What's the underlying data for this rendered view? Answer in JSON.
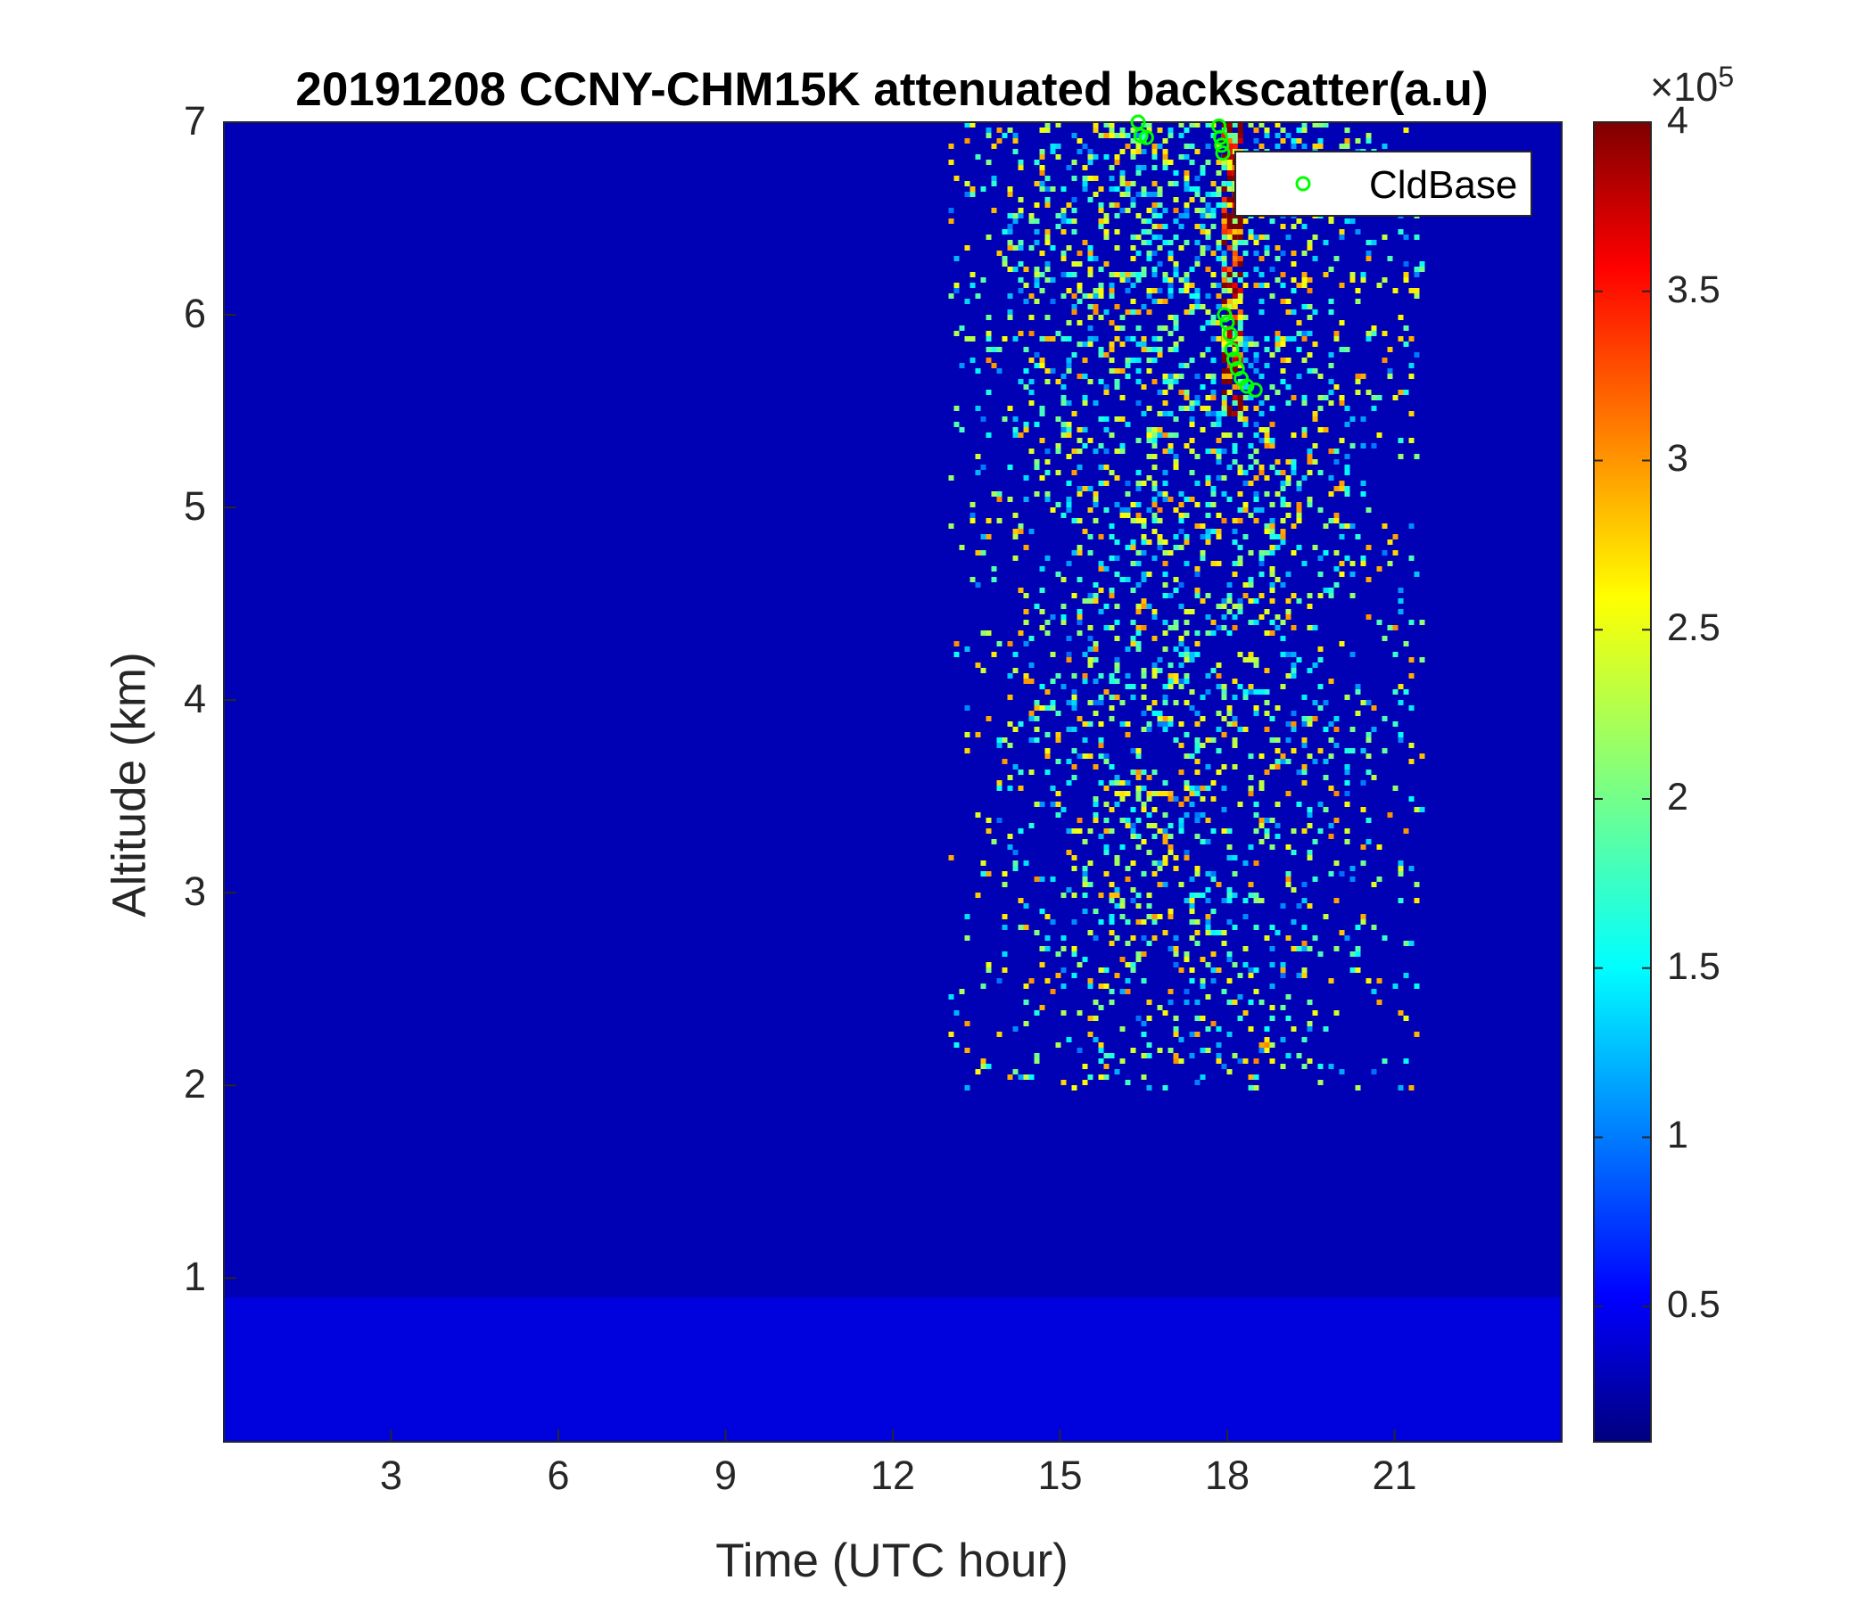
{
  "chart_data": {
    "type": "heatmap",
    "title": "20191208 CCNY-CHM15K attenuated backscatter(a.u)",
    "xlabel": "Time (UTC hour)",
    "ylabel": "Altitude (km)",
    "xlim": [
      0,
      24
    ],
    "ylim": [
      0.15,
      7
    ],
    "x_ticks": [
      "3",
      "6",
      "9",
      "12",
      "15",
      "18",
      "21"
    ],
    "y_ticks": [
      "1",
      "2",
      "3",
      "4",
      "5",
      "6",
      "7"
    ],
    "colorbar": {
      "colormap": "jet",
      "range": [
        10000,
        400000
      ],
      "ticks": [
        "0.5",
        "1",
        "1.5",
        "2",
        "2.5",
        "3",
        "3.5",
        "4"
      ],
      "exponent_base": "×10",
      "exponent_power": "5"
    },
    "regions": [
      {
        "description_values": "boundary layer",
        "time_start": 0,
        "time_end": 24,
        "top_altitude_km": 0.9,
        "level_x1e5": 0.6
      },
      {
        "description_values": "enhanced noise/aerosol region",
        "time_start": 13,
        "time_end": 21.5,
        "altitude_start": 2,
        "altitude_end": 7,
        "level_x1e5": 2.5
      },
      {
        "description_values": "cloud",
        "time_start": 17.9,
        "time_end": 18.2,
        "altitude_start": 5.5,
        "altitude_end": 7,
        "level_x1e5": 4
      }
    ],
    "series": [
      {
        "name": "CldBase",
        "marker": "circle",
        "color": "#00ff00",
        "points": [
          {
            "x": 16.4,
            "y": 7.0
          },
          {
            "x": 16.45,
            "y": 6.93
          },
          {
            "x": 16.55,
            "y": 6.92
          },
          {
            "x": 17.85,
            "y": 6.98
          },
          {
            "x": 17.88,
            "y": 6.92
          },
          {
            "x": 17.9,
            "y": 6.88
          },
          {
            "x": 17.92,
            "y": 6.84
          },
          {
            "x": 17.95,
            "y": 6.0
          },
          {
            "x": 18.0,
            "y": 5.96
          },
          {
            "x": 18.05,
            "y": 5.9
          },
          {
            "x": 18.08,
            "y": 5.82
          },
          {
            "x": 18.12,
            "y": 5.77
          },
          {
            "x": 18.18,
            "y": 5.72
          },
          {
            "x": 18.25,
            "y": 5.67
          },
          {
            "x": 18.35,
            "y": 5.63
          },
          {
            "x": 18.5,
            "y": 5.61
          }
        ]
      }
    ],
    "legend": {
      "position": "top-right",
      "entries": [
        "CldBase"
      ]
    }
  }
}
